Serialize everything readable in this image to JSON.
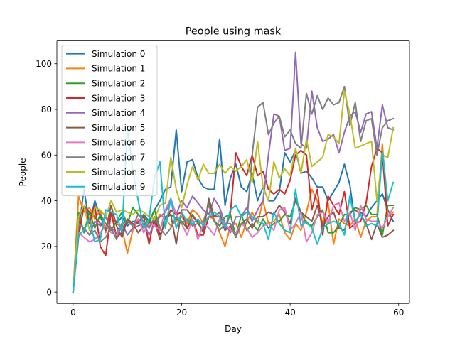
{
  "chart_data": {
    "type": "line",
    "title": "People using mask",
    "xlabel": "Day",
    "ylabel": "People",
    "xlim": [
      -3,
      62
    ],
    "ylim": [
      -5,
      110
    ],
    "xticks": [
      0,
      20,
      40,
      60
    ],
    "yticks": [
      0,
      20,
      40,
      60,
      80,
      100
    ],
    "grid": false,
    "legend_position": "upper left",
    "x": [
      0,
      1,
      2,
      3,
      4,
      5,
      6,
      7,
      8,
      9,
      10,
      11,
      12,
      13,
      14,
      15,
      16,
      17,
      18,
      19,
      20,
      21,
      22,
      23,
      24,
      25,
      26,
      27,
      28,
      29,
      30,
      31,
      32,
      33,
      34,
      35,
      36,
      37,
      38,
      39,
      40,
      41,
      42,
      43,
      44,
      45,
      46,
      47,
      48,
      49,
      50,
      51,
      52,
      53,
      54,
      55,
      56,
      57,
      58,
      59
    ],
    "series": [
      {
        "name": "Simulation 0",
        "color": "#1f77b4",
        "values": [
          0,
          27,
          45,
          30,
          40,
          33,
          28,
          35,
          30,
          33,
          29,
          31,
          30,
          34,
          31,
          36,
          40,
          45,
          46,
          71,
          44,
          57,
          58,
          50,
          46,
          45,
          45,
          67,
          38,
          50,
          56,
          46,
          44,
          52,
          40,
          46,
          40,
          40,
          44,
          61,
          57,
          62,
          52,
          53,
          50,
          46,
          46,
          40,
          44,
          48,
          56,
          47,
          30,
          35,
          33,
          37,
          40,
          43,
          36,
          31
        ]
      },
      {
        "name": "Simulation 1",
        "color": "#ff7f0e",
        "values": [
          0,
          42,
          35,
          37,
          32,
          36,
          26,
          34,
          30,
          28,
          17,
          27,
          32,
          28,
          29,
          30,
          34,
          32,
          29,
          31,
          33,
          30,
          36,
          34,
          30,
          33,
          32,
          26,
          20,
          29,
          30,
          24,
          31,
          35,
          30,
          40,
          30,
          31,
          34,
          26,
          23,
          30,
          27,
          35,
          45,
          40,
          30,
          39,
          21,
          32,
          30,
          29,
          32,
          24,
          31,
          33,
          33,
          65,
          33,
          35
        ]
      },
      {
        "name": "Simulation 2",
        "color": "#2ca02c",
        "values": [
          0,
          35,
          26,
          35,
          28,
          34,
          30,
          27,
          31,
          35,
          30,
          37,
          34,
          33,
          30,
          36,
          28,
          32,
          34,
          32,
          31,
          28,
          34,
          30,
          27,
          40,
          31,
          29,
          33,
          34,
          24,
          34,
          27,
          30,
          27,
          32,
          28,
          30,
          31,
          34,
          33,
          40,
          35,
          30,
          29,
          33,
          36,
          26,
          26,
          29,
          34,
          34,
          37,
          36,
          38,
          34,
          34,
          25,
          38,
          38
        ]
      },
      {
        "name": "Simulation 3",
        "color": "#d62728",
        "values": [
          0,
          24,
          38,
          30,
          38,
          20,
          16,
          35,
          24,
          26,
          32,
          29,
          31,
          33,
          21,
          33,
          25,
          30,
          36,
          34,
          35,
          28,
          32,
          25,
          25,
          33,
          33,
          33,
          27,
          35,
          61,
          55,
          51,
          60,
          51,
          53,
          45,
          43,
          45,
          43,
          49,
          60,
          62,
          60,
          36,
          45,
          25,
          42,
          38,
          34,
          44,
          28,
          30,
          31,
          39,
          55,
          63,
          61,
          29,
          34
        ]
      },
      {
        "name": "Simulation 4",
        "color": "#9467bd",
        "values": [
          0,
          30,
          28,
          25,
          31,
          29,
          33,
          28,
          26,
          30,
          25,
          28,
          29,
          30,
          25,
          30,
          33,
          35,
          40,
          34,
          40,
          37,
          42,
          39,
          36,
          34,
          41,
          37,
          30,
          26,
          33,
          33,
          37,
          31,
          36,
          40,
          60,
          78,
          77,
          62,
          63,
          105,
          65,
          63,
          88,
          72,
          66,
          67,
          69,
          61,
          70,
          77,
          79,
          70,
          78,
          79,
          63,
          82,
          72,
          71
        ]
      },
      {
        "name": "Simulation 5",
        "color": "#8c564b",
        "values": [
          0,
          32,
          38,
          35,
          33,
          30,
          27,
          38,
          29,
          24,
          32,
          30,
          26,
          29,
          30,
          31,
          23,
          33,
          34,
          21,
          36,
          36,
          33,
          31,
          26,
          41,
          33,
          35,
          27,
          29,
          24,
          30,
          32,
          28,
          33,
          33,
          35,
          34,
          38,
          35,
          30,
          41,
          35,
          33,
          31,
          38,
          29,
          33,
          35,
          28,
          27,
          35,
          36,
          34,
          30,
          23,
          30,
          24,
          25,
          27
        ]
      },
      {
        "name": "Simulation 6",
        "color": "#e377c2",
        "values": [
          0,
          26,
          24,
          22,
          23,
          26,
          29,
          26,
          25,
          30,
          31,
          29,
          32,
          26,
          30,
          29,
          27,
          36,
          41,
          34,
          30,
          25,
          32,
          23,
          30,
          28,
          25,
          32,
          30,
          27,
          26,
          30,
          28,
          24,
          26,
          29,
          30,
          27,
          36,
          37,
          27,
          30,
          35,
          22,
          26,
          34,
          35,
          30,
          38,
          39,
          31,
          35,
          27,
          38,
          32,
          31,
          31,
          28,
          33,
          37
        ]
      },
      {
        "name": "Simulation 7",
        "color": "#7f7f7f",
        "values": [
          0,
          30,
          28,
          25,
          27,
          22,
          24,
          28,
          23,
          30,
          31,
          29,
          34,
          31,
          28,
          33,
          28,
          25,
          28,
          33,
          30,
          32,
          29,
          30,
          31,
          38,
          31,
          27,
          30,
          30,
          24,
          30,
          30,
          60,
          81,
          83,
          69,
          74,
          77,
          68,
          71,
          65,
          63,
          87,
          78,
          86,
          80,
          85,
          82,
          83,
          90,
          73,
          83,
          66,
          75,
          76,
          60,
          72,
          75,
          76
        ]
      },
      {
        "name": "Simulation 8",
        "color": "#bcbd22",
        "values": [
          0,
          33,
          38,
          27,
          37,
          36,
          33,
          40,
          35,
          36,
          35,
          34,
          36,
          35,
          33,
          32,
          38,
          39,
          59,
          45,
          37,
          47,
          55,
          49,
          56,
          52,
          52,
          56,
          52,
          55,
          53,
          55,
          58,
          48,
          66,
          46,
          40,
          57,
          50,
          54,
          51,
          63,
          52,
          67,
          55,
          57,
          59,
          69,
          68,
          65,
          88,
          78,
          63,
          64,
          65,
          66,
          40,
          60,
          59,
          72
        ]
      },
      {
        "name": "Simulation 9",
        "color": "#17becf",
        "values": [
          0,
          25,
          27,
          32,
          22,
          23,
          36,
          35,
          34,
          26,
          72,
          53,
          40,
          28,
          32,
          50,
          57,
          28,
          41,
          28,
          35,
          31,
          30,
          32,
          29,
          33,
          35,
          33,
          28,
          36,
          38,
          33,
          35,
          33,
          31,
          30,
          23,
          35,
          30,
          27,
          26,
          45,
          29,
          31,
          28,
          21,
          28,
          30,
          31,
          30,
          25,
          42,
          31,
          34,
          29,
          30,
          29,
          62,
          40,
          48
        ]
      }
    ]
  }
}
